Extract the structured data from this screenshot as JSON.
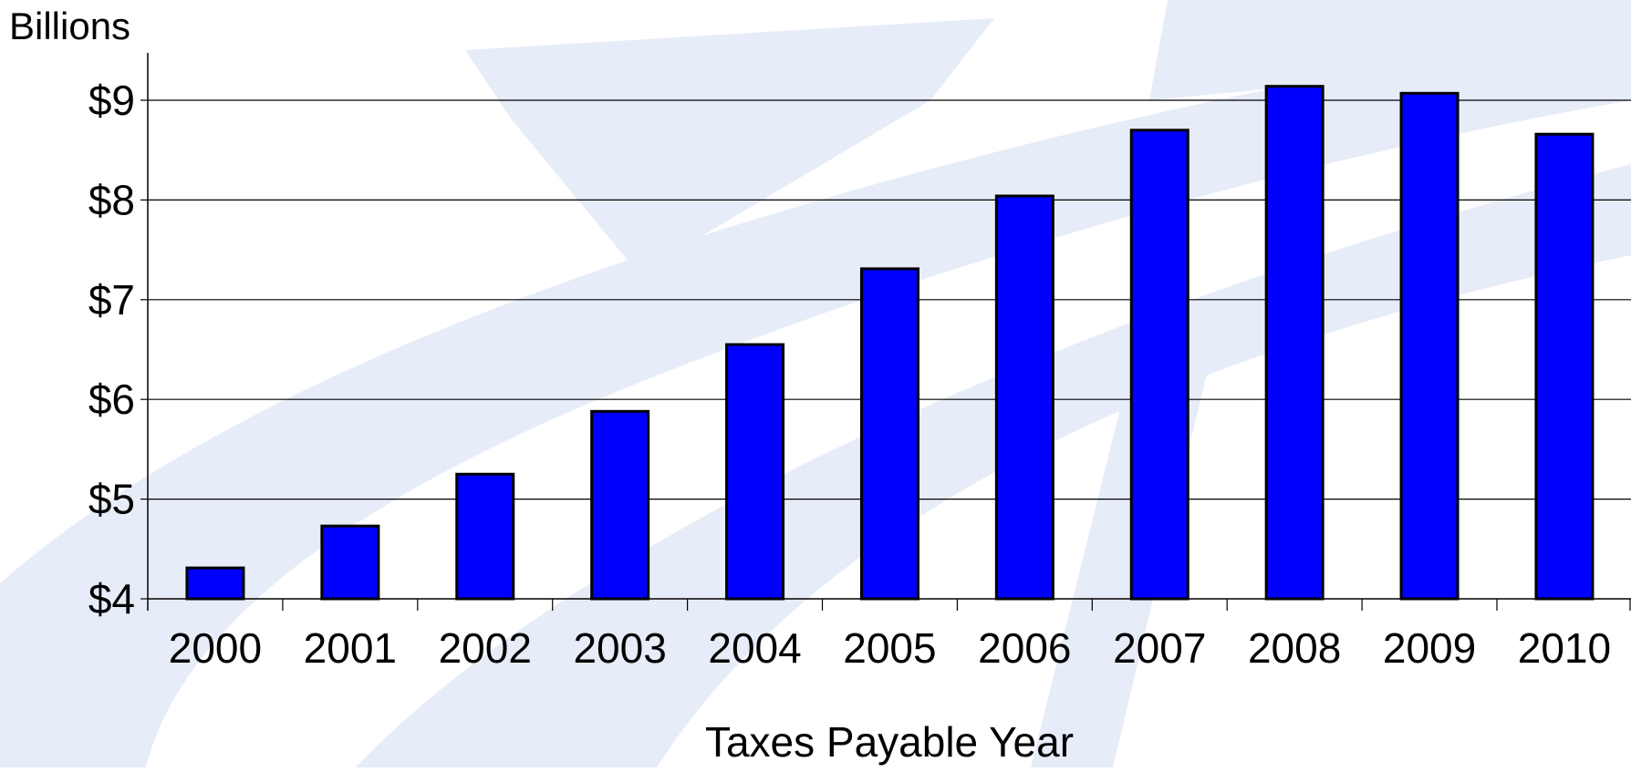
{
  "chart_data": {
    "type": "bar",
    "title": "",
    "ylabel": "Billions",
    "xlabel": "Taxes Payable Year",
    "categories": [
      "2000",
      "2001",
      "2002",
      "2003",
      "2004",
      "2005",
      "2006",
      "2007",
      "2008",
      "2009",
      "2010"
    ],
    "values": [
      4.31,
      4.73,
      5.25,
      5.88,
      6.55,
      7.31,
      8.04,
      8.7,
      9.14,
      9.07,
      8.66
    ],
    "ylim": [
      4,
      9.5
    ],
    "yticks": [
      {
        "value": 4,
        "label": "$4"
      },
      {
        "value": 5,
        "label": "$5"
      },
      {
        "value": 6,
        "label": "$6"
      },
      {
        "value": 7,
        "label": "$7"
      },
      {
        "value": 8,
        "label": "$8"
      },
      {
        "value": 9,
        "label": "$9"
      }
    ],
    "grid": true,
    "legend": "none",
    "colors": {
      "bar_fill": "#0000ff",
      "bar_stroke": "#000000",
      "grid": "#000000",
      "watermark": "#e6ecf8"
    }
  }
}
